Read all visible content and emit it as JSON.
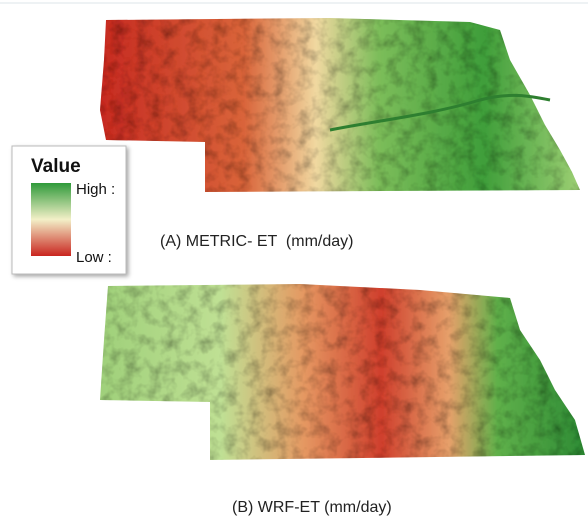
{
  "legend": {
    "title": "Value",
    "high": "High :",
    "low": "Low :"
  },
  "panels": [
    {
      "caption": "(A) METRIC- ET  (mm/day)"
    },
    {
      "caption": "(B) WRF-ET (mm/day)"
    }
  ]
}
